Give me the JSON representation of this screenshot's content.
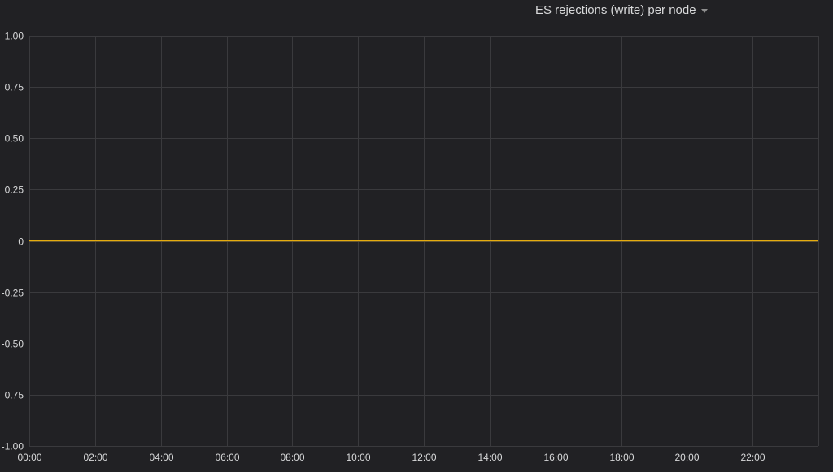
{
  "panel": {
    "title": "ES rejections (write) per node"
  },
  "colors": {
    "background": "#212124",
    "grid": "#3a3a3d",
    "text": "#d8d9da",
    "series": "#e5ac0e"
  },
  "icons": {
    "title_menu": "caret-down-icon"
  },
  "chart_data": {
    "type": "line",
    "title": "ES rejections (write) per node",
    "xlabel": "",
    "ylabel": "",
    "x_ticks": [
      "00:00",
      "02:00",
      "04:00",
      "06:00",
      "08:00",
      "10:00",
      "12:00",
      "14:00",
      "16:00",
      "18:00",
      "20:00",
      "22:00"
    ],
    "y_ticks": [
      "1.00",
      "0.75",
      "0.50",
      "0.25",
      "0",
      "-0.25",
      "-0.50",
      "-0.75",
      "-1.00"
    ],
    "y_tick_values": [
      1,
      0.75,
      0.5,
      0.25,
      0,
      -0.25,
      -0.5,
      -0.75,
      -1
    ],
    "ylim": [
      -1,
      1
    ],
    "xlim": [
      "00:00",
      "24:00"
    ],
    "grid": true,
    "series": [
      {
        "x": [
          "00:00",
          "24:00"
        ],
        "values": [
          0,
          0
        ]
      }
    ]
  }
}
